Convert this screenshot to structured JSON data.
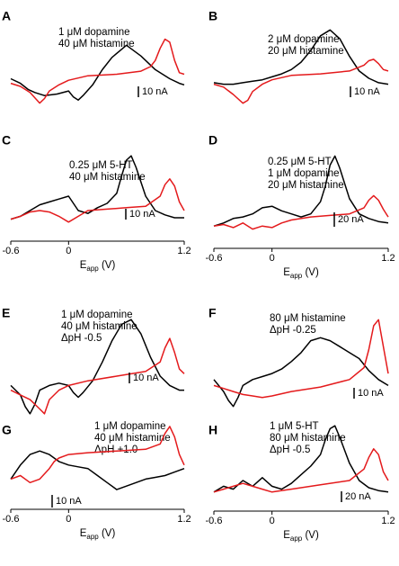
{
  "figure": {
    "colors": {
      "black_trace": "#000000",
      "red_trace": "#e41a1c"
    },
    "xaxis": {
      "label_main": "E",
      "label_sub": "app",
      "label_unit": " (V)",
      "ticks": [
        "-0.6",
        "0",
        "1.2"
      ]
    }
  },
  "chart_data": [
    {
      "type": "line",
      "panel": "A",
      "annotation": [
        "1 μM dopamine",
        "40 μM histamine"
      ],
      "scale_bar": "10 nA",
      "xlim": [
        -0.6,
        1.2
      ],
      "x_is_shown": false,
      "series": [
        {
          "color": "black",
          "x": [
            -0.6,
            -0.5,
            -0.42,
            -0.35,
            -0.25,
            -0.12,
            0,
            0.05,
            0.1,
            0.15,
            0.25,
            0.35,
            0.45,
            0.6,
            0.75,
            0.9,
            1.05,
            1.15,
            1.2
          ],
          "y": [
            -2,
            -5,
            -9,
            -11,
            -13,
            -12,
            -10,
            -14,
            -16,
            -13,
            -6,
            4,
            12,
            20,
            13,
            4,
            -2,
            -5,
            -6
          ]
        },
        {
          "color": "red",
          "x": [
            -0.6,
            -0.5,
            -0.4,
            -0.3,
            -0.25,
            -0.2,
            -0.1,
            0,
            0.2,
            0.5,
            0.75,
            0.85,
            0.9,
            0.95,
            1.0,
            1.05,
            1.1,
            1.15,
            1.2
          ],
          "y": [
            -5,
            -7,
            -11,
            -18,
            -15,
            -10,
            -6,
            -3,
            0,
            1,
            3,
            6,
            10,
            18,
            24,
            22,
            10,
            2,
            1
          ]
        }
      ]
    },
    {
      "type": "line",
      "panel": "B",
      "annotation": [
        "2 μM dopamine",
        "20 μM histamine"
      ],
      "scale_bar": "10 nA",
      "xlim": [
        -0.6,
        1.2
      ],
      "x_is_shown": false,
      "series": [
        {
          "color": "black",
          "x": [
            -0.6,
            -0.5,
            -0.4,
            -0.3,
            -0.2,
            -0.1,
            0,
            0.1,
            0.2,
            0.3,
            0.4,
            0.5,
            0.6,
            0.7,
            0.8,
            0.9,
            1.0,
            1.1,
            1.2
          ],
          "y": [
            -6,
            -7,
            -7,
            -6,
            -5,
            -4,
            -2,
            0,
            3,
            8,
            16,
            26,
            30,
            24,
            12,
            2,
            -3,
            -6,
            -7
          ]
        },
        {
          "color": "red",
          "x": [
            -0.6,
            -0.5,
            -0.4,
            -0.3,
            -0.25,
            -0.2,
            -0.1,
            0,
            0.2,
            0.5,
            0.8,
            0.95,
            1.0,
            1.05,
            1.1,
            1.15,
            1.2
          ],
          "y": [
            -7,
            -9,
            -14,
            -20,
            -18,
            -12,
            -7,
            -4,
            -1,
            0,
            2,
            6,
            9,
            10,
            7,
            3,
            2
          ]
        }
      ]
    },
    {
      "type": "line",
      "panel": "C",
      "annotation": [
        "0.25 μM 5-HT",
        "40 μM histamine"
      ],
      "scale_bar": "10 nA",
      "xlim": [
        -0.6,
        1.2
      ],
      "x_is_shown": true,
      "series": [
        {
          "color": "black",
          "x": [
            -0.6,
            -0.5,
            -0.4,
            -0.3,
            -0.2,
            -0.1,
            0,
            0.1,
            0.2,
            0.3,
            0.4,
            0.5,
            0.55,
            0.6,
            0.65,
            0.7,
            0.8,
            0.9,
            1.0,
            1.1,
            1.2
          ],
          "y": [
            -8,
            -6,
            -2,
            2,
            4,
            6,
            8,
            -2,
            -4,
            0,
            3,
            10,
            22,
            33,
            36,
            28,
            8,
            -2,
            -5,
            -7,
            -7
          ]
        },
        {
          "color": "red",
          "x": [
            -0.6,
            -0.5,
            -0.4,
            -0.3,
            -0.2,
            -0.1,
            0,
            0.1,
            0.2,
            0.4,
            0.6,
            0.8,
            0.95,
            1.0,
            1.05,
            1.1,
            1.15,
            1.2
          ],
          "y": [
            -8,
            -6,
            -3,
            -2,
            -3,
            -6,
            -10,
            -6,
            -2,
            -1,
            0,
            1,
            8,
            16,
            20,
            15,
            4,
            -2
          ]
        }
      ]
    },
    {
      "type": "line",
      "panel": "D",
      "annotation": [
        "0.25 μM 5-HT",
        "1 μM dopamine",
        "20 μM histamine"
      ],
      "scale_bar": "20 nA",
      "xlim": [
        -0.6,
        1.2
      ],
      "x_is_shown": true,
      "series": [
        {
          "color": "black",
          "x": [
            -0.6,
            -0.5,
            -0.4,
            -0.3,
            -0.2,
            -0.1,
            0,
            0.1,
            0.2,
            0.3,
            0.4,
            0.5,
            0.55,
            0.6,
            0.65,
            0.7,
            0.8,
            0.9,
            1.0,
            1.1,
            1.2
          ],
          "y": [
            -8,
            -6,
            -3,
            -2,
            0,
            4,
            5,
            2,
            0,
            -2,
            0,
            8,
            18,
            32,
            38,
            30,
            10,
            0,
            -3,
            -5,
            -6
          ]
        },
        {
          "color": "red",
          "x": [
            -0.6,
            -0.5,
            -0.4,
            -0.3,
            -0.2,
            -0.1,
            0,
            0.1,
            0.2,
            0.4,
            0.6,
            0.8,
            0.95,
            1.0,
            1.05,
            1.1,
            1.15,
            1.2
          ],
          "y": [
            -8,
            -7,
            -9,
            -6,
            -10,
            -8,
            -9,
            -6,
            -4,
            -2,
            -1,
            0,
            4,
            9,
            12,
            9,
            3,
            -2
          ]
        }
      ]
    },
    {
      "type": "line",
      "panel": "E",
      "annotation": [
        "1 μM dopamine",
        "40 μM histamine",
        "ΔpH -0.5"
      ],
      "scale_bar": "10 nA",
      "xlim": [
        -0.6,
        1.2
      ],
      "x_is_shown": false,
      "series": [
        {
          "color": "black",
          "x": [
            -0.6,
            -0.5,
            -0.45,
            -0.4,
            -0.35,
            -0.3,
            -0.2,
            -0.1,
            0,
            0.05,
            0.1,
            0.15,
            0.25,
            0.35,
            0.45,
            0.55,
            0.65,
            0.75,
            0.85,
            0.95,
            1.05,
            1.15,
            1.2
          ],
          "y": [
            -4,
            -8,
            -13,
            -16,
            -12,
            -6,
            -4,
            -3,
            -4,
            -7,
            -9,
            -7,
            -2,
            6,
            15,
            22,
            24,
            18,
            8,
            0,
            -4,
            -6,
            -6
          ]
        },
        {
          "color": "red",
          "x": [
            -0.6,
            -0.5,
            -0.4,
            -0.3,
            -0.25,
            -0.2,
            -0.1,
            0,
            0.2,
            0.5,
            0.8,
            0.95,
            1.0,
            1.05,
            1.1,
            1.15,
            1.2
          ],
          "y": [
            -6,
            -8,
            -10,
            -14,
            -16,
            -10,
            -6,
            -4,
            -2,
            0,
            2,
            6,
            12,
            16,
            10,
            3,
            1
          ]
        }
      ]
    },
    {
      "type": "line",
      "panel": "F",
      "annotation": [
        "80 μM histamine",
        "ΔpH -0.25"
      ],
      "scale_bar": "10 nA",
      "xlim": [
        -0.6,
        1.2
      ],
      "x_is_shown": false,
      "series": [
        {
          "color": "black",
          "x": [
            -0.6,
            -0.5,
            -0.45,
            -0.4,
            -0.35,
            -0.3,
            -0.2,
            -0.1,
            0,
            0.1,
            0.2,
            0.3,
            0.4,
            0.5,
            0.6,
            0.7,
            0.8,
            0.9,
            1.0,
            1.1,
            1.2
          ],
          "y": [
            -2,
            -10,
            -16,
            -20,
            -14,
            -6,
            -2,
            0,
            2,
            5,
            10,
            16,
            24,
            26,
            24,
            20,
            16,
            12,
            4,
            -2,
            -6
          ]
        },
        {
          "color": "red",
          "x": [
            -0.6,
            -0.5,
            -0.4,
            -0.3,
            -0.2,
            -0.1,
            0,
            0.2,
            0.5,
            0.8,
            0.95,
            1.0,
            1.05,
            1.1,
            1.15,
            1.2
          ],
          "y": [
            -6,
            -8,
            -10,
            -12,
            -13,
            -14,
            -13,
            -10,
            -7,
            -2,
            6,
            18,
            34,
            38,
            20,
            2
          ]
        }
      ]
    },
    {
      "type": "line",
      "panel": "G",
      "annotation": [
        "1 μM dopamine",
        "40 μM histamine",
        "ΔpH +1.0"
      ],
      "scale_bar": "10 nA",
      "xlim": [
        -0.6,
        1.2
      ],
      "x_is_shown": true,
      "series": [
        {
          "color": "black",
          "x": [
            -0.6,
            -0.5,
            -0.4,
            -0.3,
            -0.2,
            -0.1,
            0,
            0.1,
            0.2,
            0.3,
            0.4,
            0.5,
            0.6,
            0.7,
            0.8,
            0.9,
            1.0,
            1.1,
            1.2
          ],
          "y": [
            -2,
            6,
            12,
            14,
            12,
            8,
            6,
            5,
            4,
            0,
            -4,
            -8,
            -6,
            -4,
            -2,
            -1,
            0,
            2,
            4
          ]
        },
        {
          "color": "red",
          "x": [
            -0.6,
            -0.5,
            -0.4,
            -0.3,
            -0.2,
            -0.15,
            -0.1,
            0,
            0.2,
            0.5,
            0.8,
            0.95,
            1.0,
            1.05,
            1.1,
            1.15,
            1.2
          ],
          "y": [
            -2,
            0,
            -4,
            -2,
            4,
            8,
            10,
            12,
            13,
            14,
            15,
            18,
            24,
            28,
            22,
            12,
            6
          ]
        }
      ]
    },
    {
      "type": "line",
      "panel": "H",
      "annotation": [
        "1 μM 5-HT",
        "80 μM histamine",
        "ΔpH -0.5"
      ],
      "scale_bar": "20 nA",
      "xlim": [
        -0.6,
        1.2
      ],
      "x_is_shown": true,
      "series": [
        {
          "color": "black",
          "x": [
            -0.6,
            -0.5,
            -0.4,
            -0.3,
            -0.2,
            -0.1,
            0,
            0.1,
            0.2,
            0.3,
            0.4,
            0.5,
            0.55,
            0.6,
            0.65,
            0.7,
            0.8,
            0.9,
            1.0,
            1.1,
            1.2
          ],
          "y": [
            -6,
            -2,
            -4,
            2,
            -2,
            4,
            -2,
            -4,
            0,
            6,
            12,
            20,
            30,
            38,
            40,
            32,
            14,
            2,
            -3,
            -5,
            -6
          ]
        },
        {
          "color": "red",
          "x": [
            -0.6,
            -0.5,
            -0.4,
            -0.3,
            -0.2,
            -0.1,
            0,
            0.2,
            0.5,
            0.8,
            0.95,
            1.0,
            1.05,
            1.1,
            1.15,
            1.2
          ],
          "y": [
            -6,
            -4,
            -2,
            0,
            -2,
            -4,
            -6,
            -4,
            -1,
            2,
            10,
            18,
            24,
            20,
            8,
            2
          ]
        }
      ]
    }
  ]
}
